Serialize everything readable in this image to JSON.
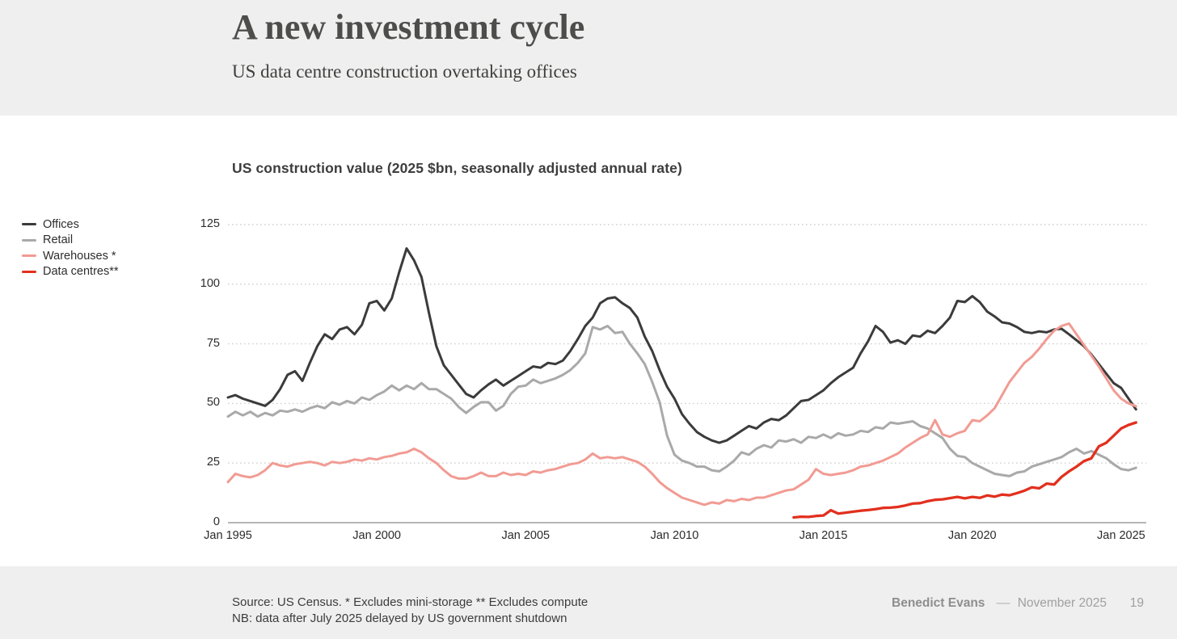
{
  "slide": {
    "title": "A new investment cycle",
    "subtitle": "US data centre construction overtaking offices",
    "footer": {
      "source_line1": "Source: US Census. * Excludes mini-storage ** Excludes compute",
      "source_line2": "NB: data after July 2025 delayed by US government shutdown",
      "author": "Benedict Evans",
      "dash": "––",
      "date": "November 2025",
      "page": "19"
    }
  },
  "colors": {
    "band_background": "#efefef",
    "chart_background": "#ffffff",
    "gridline": "#cfcfcf",
    "axis_line": "#8b8b8b",
    "offices": "#3b3b3b",
    "retail": "#a9a9a9",
    "warehouses": "#f19b93",
    "data_centres": "#e2301e"
  },
  "chart_data": {
    "type": "line",
    "title": "US construction value (2025 $bn, seasonally adjusted annual rate)",
    "xlabel": "",
    "ylabel": "",
    "grid": "dotted-horizontal",
    "legend_position": "left",
    "x_axis": {
      "start_year": 1995,
      "end_year": 2025.5,
      "tick_years": [
        1995,
        2000,
        2005,
        2010,
        2015,
        2020,
        2025
      ],
      "tick_labels": [
        "Jan 1995",
        "Jan 2000",
        "Jan 2005",
        "Jan 2010",
        "Jan 2015",
        "Jan 2020",
        "Jan 2025"
      ]
    },
    "y_axis": {
      "ticks": [
        0,
        25,
        50,
        75,
        100,
        125
      ],
      "ylim": [
        0,
        125
      ]
    },
    "series": [
      {
        "name": "Offices",
        "color": "#3b3b3b",
        "line_width": 3,
        "start_year": 1995,
        "step_years": 0.25,
        "values": [
          52.5,
          53.5,
          52,
          51,
          50,
          49,
          51.5,
          56,
          62,
          63.5,
          59.5,
          67,
          74,
          79,
          77,
          81,
          82,
          79,
          83,
          92,
          93,
          89,
          94,
          105,
          115,
          110,
          103,
          88,
          74,
          66,
          62,
          58,
          54,
          52.5,
          55.5,
          58,
          60,
          57.5,
          59.5,
          61.5,
          63.5,
          65.5,
          65,
          67,
          66.5,
          68,
          72,
          77,
          82.5,
          86,
          92,
          94,
          94.5,
          92,
          90,
          86,
          78,
          72,
          64,
          57,
          52,
          45.5,
          41.5,
          38,
          36,
          34.5,
          33.5,
          34.5,
          36.5,
          38.5,
          40.5,
          39.5,
          42,
          43.5,
          43,
          45,
          48,
          51,
          51.5,
          53.5,
          55.5,
          58.5,
          61,
          63,
          65,
          71,
          76,
          82.5,
          80,
          75.5,
          76.5,
          75,
          78.5,
          78,
          80.5,
          79.5,
          82.5,
          86,
          93,
          92.5,
          95,
          92.5,
          88.5,
          86.5,
          84,
          83.5,
          82,
          80,
          79.5,
          80.2,
          79.8,
          81,
          81.3,
          79,
          76.5,
          74,
          70.5,
          66.5,
          62.5,
          58.5,
          56.5,
          52,
          47.5
        ]
      },
      {
        "name": "Retail",
        "color": "#a9a9a9",
        "line_width": 3,
        "start_year": 1995,
        "step_years": 0.25,
        "values": [
          44.5,
          46.5,
          45,
          46.5,
          44.5,
          46,
          45,
          47,
          46.5,
          47.5,
          46.5,
          48,
          49,
          48,
          50.5,
          49.5,
          51,
          50,
          52.5,
          51.5,
          53.5,
          55,
          57.5,
          55.5,
          57.5,
          56,
          58.5,
          56,
          56,
          54,
          52,
          48.5,
          46,
          48.5,
          50.5,
          50.5,
          47,
          49,
          54,
          57,
          57.5,
          60,
          58.5,
          59.5,
          60.5,
          62,
          64,
          67,
          71,
          82,
          81,
          82.5,
          79.5,
          80,
          75,
          71,
          66.5,
          59,
          50.5,
          36.5,
          28.5,
          26,
          25,
          23.5,
          23.5,
          22,
          21.5,
          23.5,
          26,
          29.5,
          28.5,
          31,
          32.5,
          31.5,
          34.5,
          34,
          35,
          33.5,
          36,
          35.5,
          37,
          35.5,
          37.5,
          36.5,
          37,
          38.5,
          38,
          40,
          39.5,
          42,
          41.5,
          42,
          42.5,
          40.5,
          39.5,
          37.5,
          35.5,
          31,
          28,
          27.5,
          25,
          23.5,
          22,
          20.5,
          20,
          19.5,
          21,
          21.5,
          23.5,
          24.5,
          25.5,
          26.5,
          27.5,
          29.5,
          31,
          29,
          30,
          28.5,
          27,
          24.5,
          22.5,
          22,
          23
        ]
      },
      {
        "name": "Warehouses *",
        "color": "#f19b93",
        "line_width": 3,
        "start_year": 1995,
        "step_years": 0.25,
        "values": [
          17,
          20.5,
          19.5,
          19,
          20,
          22,
          25,
          24,
          23.5,
          24.5,
          25,
          25.5,
          25,
          24,
          25.5,
          25,
          25.5,
          26.5,
          26,
          27,
          26.5,
          27.5,
          28,
          29,
          29.5,
          31,
          29.5,
          27,
          25,
          22,
          19.5,
          18.5,
          18.5,
          19.5,
          21,
          19.5,
          19.5,
          21,
          20,
          20.5,
          20,
          21.5,
          21,
          22,
          22.5,
          23.5,
          24.5,
          25,
          26.5,
          29,
          27,
          27.5,
          27,
          27.5,
          26.5,
          25.5,
          23.5,
          20.5,
          17,
          14.5,
          12.5,
          10.5,
          9.5,
          8.5,
          7.5,
          8.5,
          8,
          9.5,
          9,
          10,
          9.5,
          10.5,
          10.5,
          11.5,
          12.5,
          13.5,
          14,
          16,
          18,
          22.5,
          20.5,
          20,
          20.5,
          21,
          22,
          23.5,
          24,
          25,
          26,
          27.5,
          29,
          31.5,
          33.5,
          35.5,
          37,
          43,
          37,
          36,
          37.5,
          38.5,
          43,
          42.5,
          45,
          48,
          53.5,
          59,
          63,
          67,
          69.5,
          73,
          77,
          80.5,
          82.5,
          83.5,
          79,
          74.5,
          70,
          65.5,
          60.5,
          55.5,
          52,
          50,
          48.8
        ]
      },
      {
        "name": "Data centres**",
        "color": "#e2301e",
        "line_width": 3.3,
        "start_year": 2014,
        "step_years": 0.25,
        "values": [
          2.2,
          2.5,
          2.4,
          2.8,
          3,
          5.2,
          3.8,
          4.2,
          4.6,
          5,
          5.3,
          5.7,
          6.2,
          6.3,
          6.6,
          7.2,
          8,
          8.2,
          9,
          9.6,
          9.8,
          10.3,
          10.8,
          10.2,
          10.8,
          10.4,
          11.4,
          10.9,
          11.8,
          11.5,
          12.4,
          13.4,
          14.8,
          14.4,
          16.4,
          16,
          19.2,
          21.5,
          23.5,
          25.8,
          27,
          32,
          33.5,
          36.5,
          39.5,
          41,
          42
        ]
      }
    ]
  }
}
